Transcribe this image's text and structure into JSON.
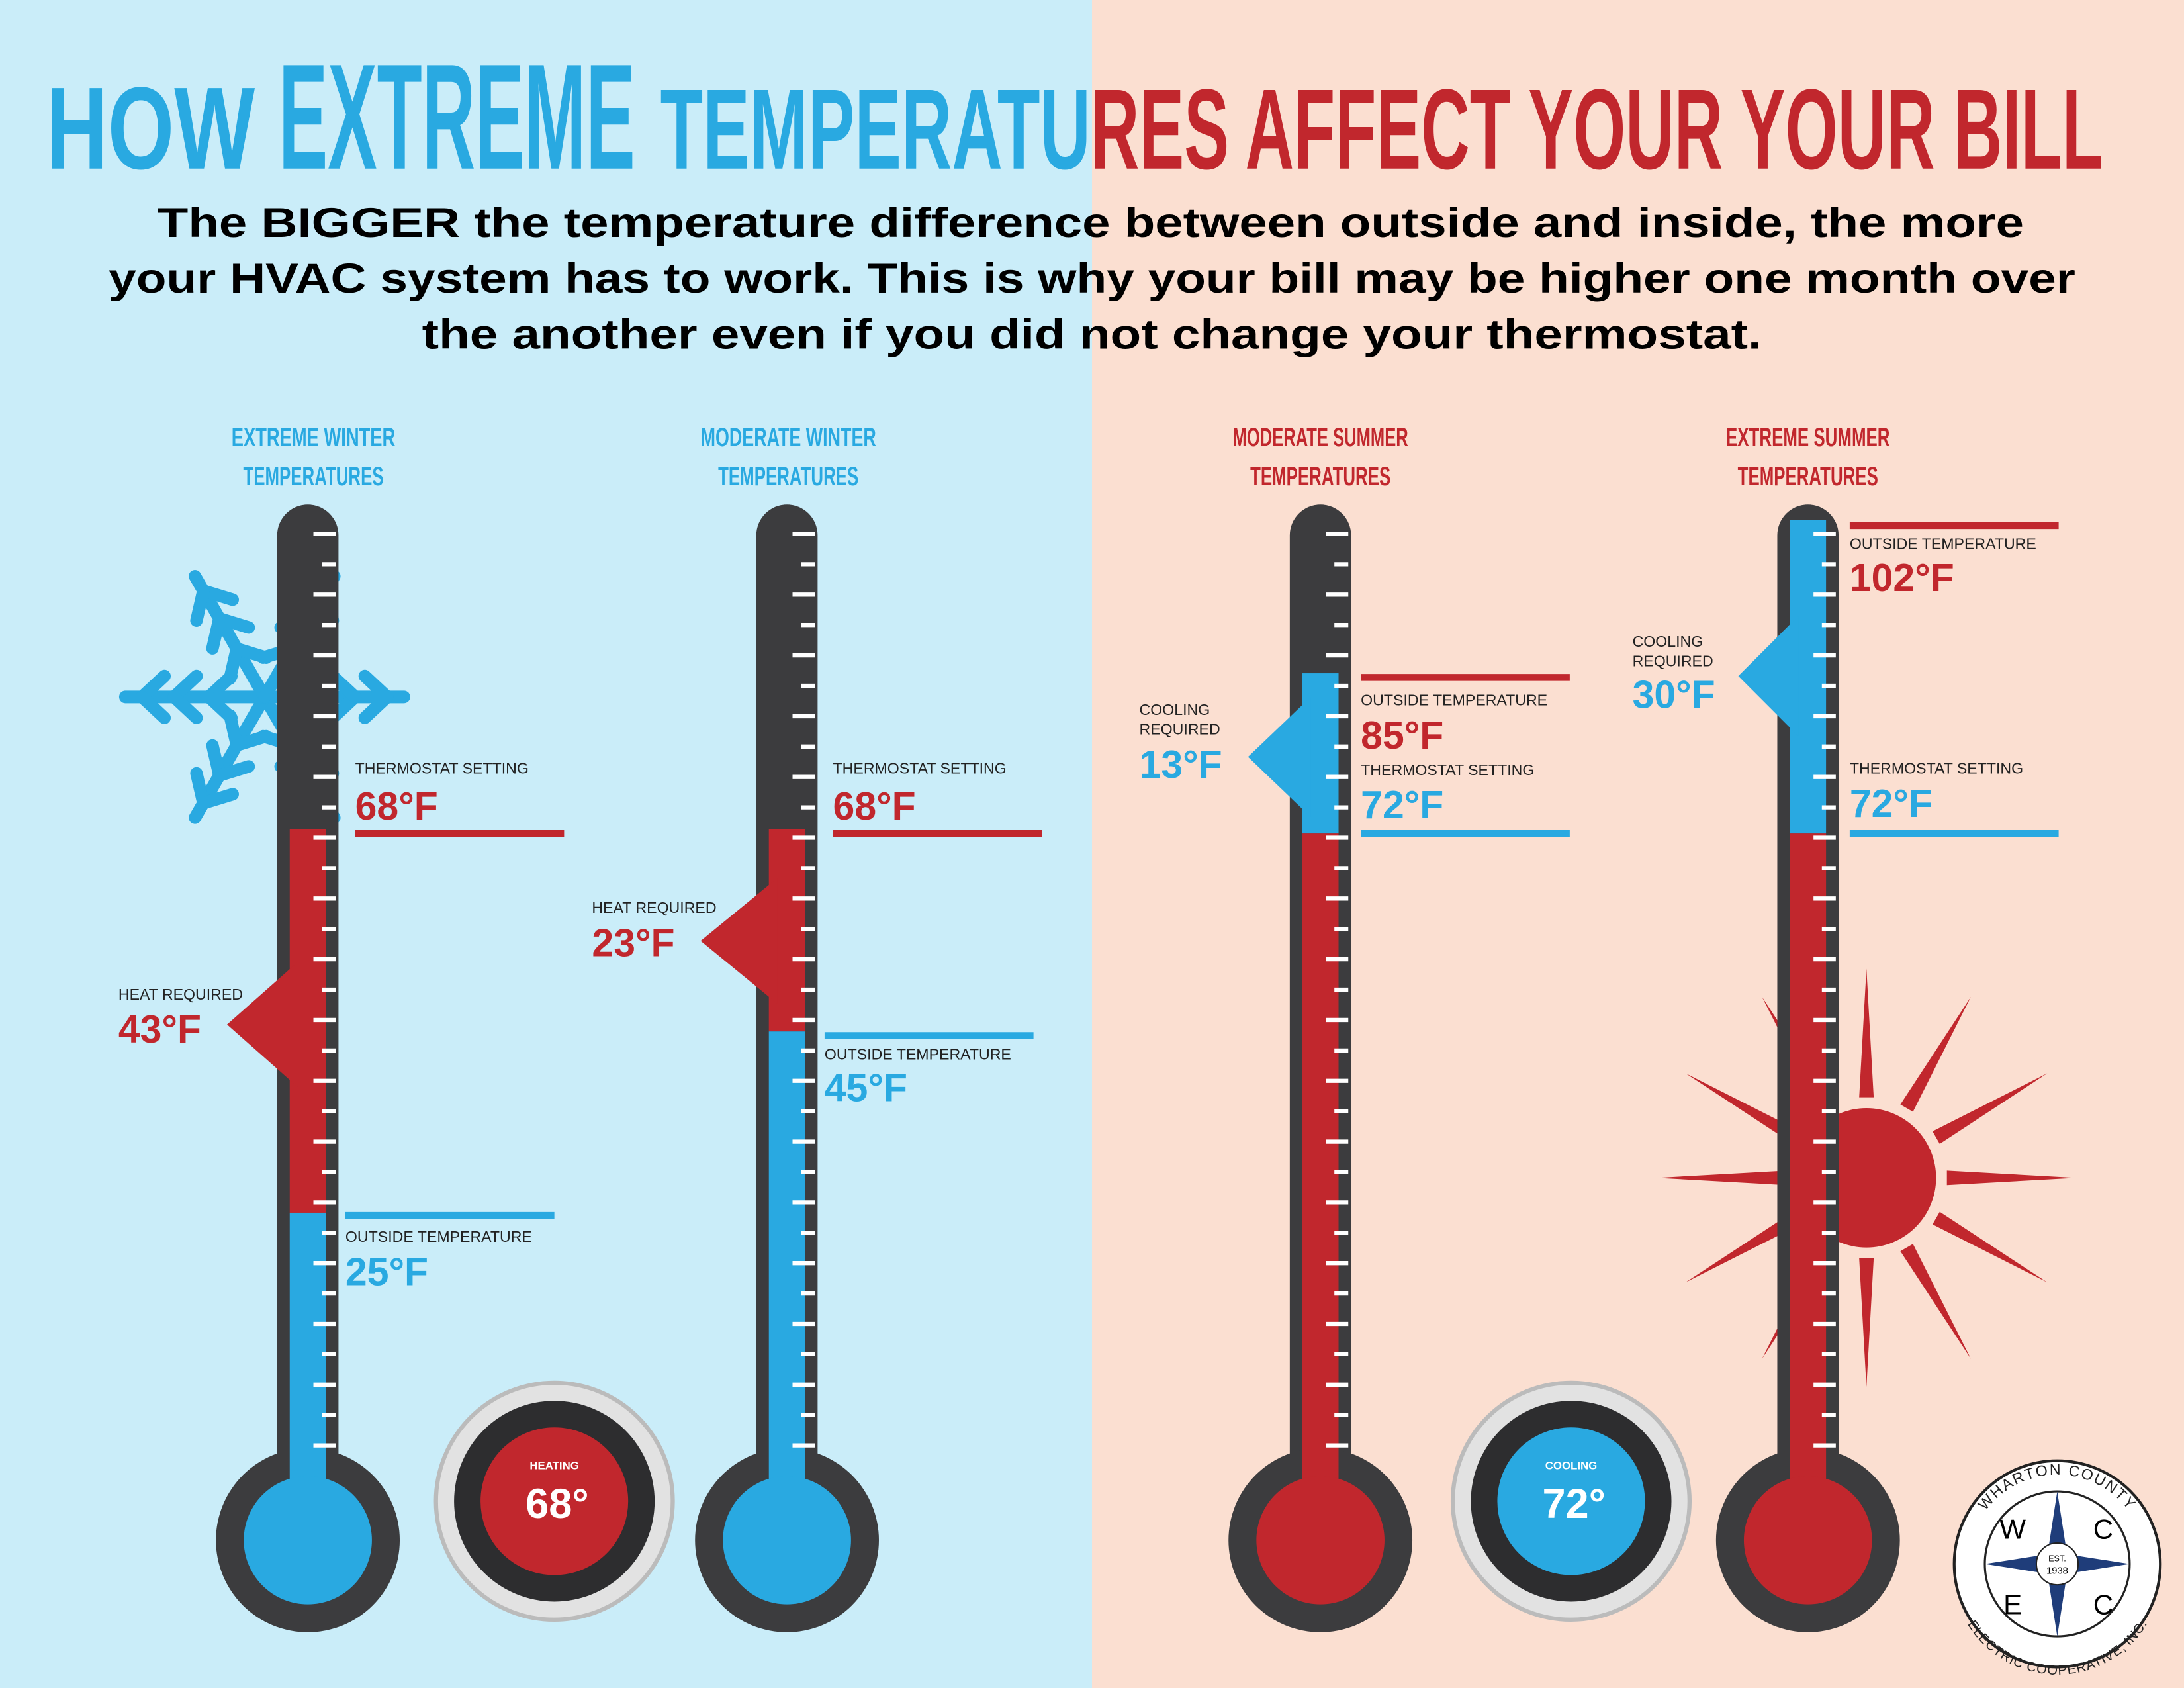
{
  "title": {
    "parts": [
      "HOW",
      "EXTREME",
      "TEMPERATU",
      "RES AFFECT YOUR YOUR BILL"
    ]
  },
  "subtitle": {
    "lines": [
      "The BIGGER the temperature difference between outside and inside, the more",
      "your HVAC system has to work. This is why your bill may be higher one month over",
      "the another even if you did not change your thermostat."
    ]
  },
  "panels": [
    {
      "heading": [
        "EXTREME WINTER",
        "TEMPERATURES"
      ],
      "thermostat_setting": {
        "label": "THERMOSTAT SETTING",
        "value": "68°F"
      },
      "required": {
        "label": [
          "HEAT REQUIRED"
        ],
        "value": "43°F"
      },
      "outside_temperature": {
        "label": "OUTSIDE TEMPERATURE",
        "value": "25°F"
      }
    },
    {
      "heading": [
        "MODERATE WINTER",
        "TEMPERATURES"
      ],
      "thermostat_setting": {
        "label": "THERMOSTAT SETTING",
        "value": "68°F"
      },
      "required": {
        "label": [
          "HEAT REQUIRED"
        ],
        "value": "23°F"
      },
      "outside_temperature": {
        "label": "OUTSIDE TEMPERATURE",
        "value": "45°F"
      }
    },
    {
      "heading": [
        "MODERATE SUMMER",
        "TEMPERATURES"
      ],
      "thermostat_setting": {
        "label": "THERMOSTAT SETTING",
        "value": "72°F"
      },
      "required": {
        "label": [
          "COOLING",
          "REQUIRED"
        ],
        "value": "13°F"
      },
      "outside_temperature": {
        "label": "OUTSIDE TEMPERATURE",
        "value": "85°F"
      }
    },
    {
      "heading": [
        "EXTREME SUMMER",
        "TEMPERATURES"
      ],
      "thermostat_setting": {
        "label": "THERMOSTAT SETTING",
        "value": "72°F"
      },
      "required": {
        "label": [
          "COOLING",
          "REQUIRED"
        ],
        "value": "30°F"
      },
      "outside_temperature": {
        "label": "OUTSIDE TEMPERATURE",
        "value": "102°F"
      }
    }
  ],
  "thermostats": [
    {
      "mode": "HEATING",
      "display": "68°"
    },
    {
      "mode": "COOLING",
      "display": "72°"
    }
  ],
  "logo": {
    "top_arc": "WHARTON COUNTY",
    "bottom_arc": "ELECTRIC COOPERATIVE, INC.",
    "letters": [
      "W",
      "C",
      "E",
      "C"
    ],
    "est": "EST.",
    "year": "1938"
  }
}
